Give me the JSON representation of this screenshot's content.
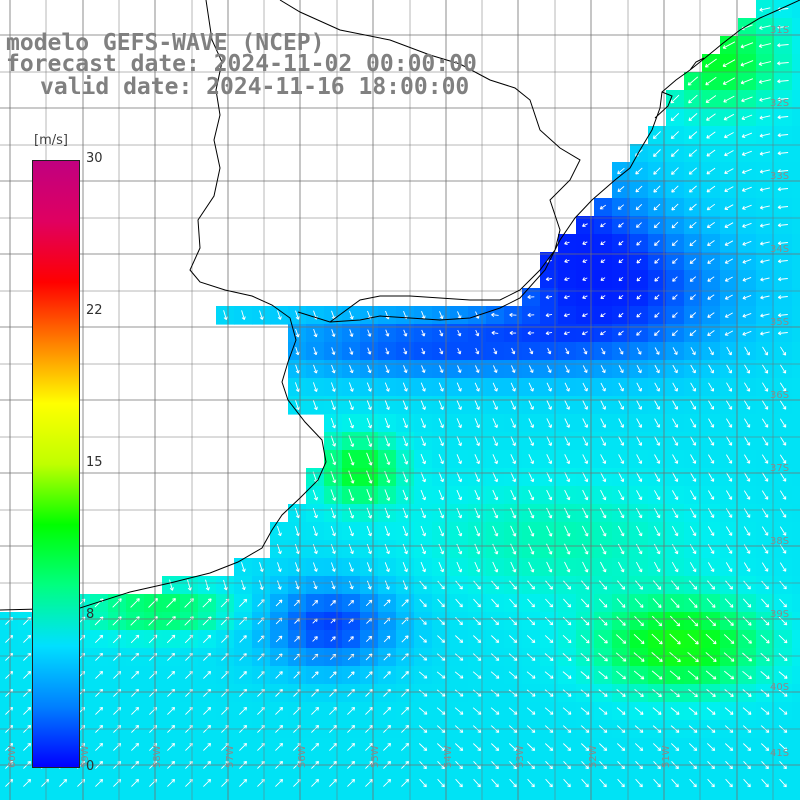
{
  "header": {
    "model": "modelo GEFS-WAVE (NCEP)",
    "forecast": "forecast date: 2024-11-02 00:00:00",
    "valid": "valid date: 2024-11-16 18:00:00"
  },
  "colorbar": {
    "unit": "[m/s]",
    "ticks": [
      "30",
      "22",
      "15",
      "8",
      "0"
    ],
    "range": [
      0,
      30
    ],
    "colors": [
      "#0000ff",
      "#0080ff",
      "#00e0ff",
      "#00ff80",
      "#00ff00",
      "#c0ff00",
      "#ffff00",
      "#ff8000",
      "#ff0000",
      "#e00060",
      "#c00080"
    ]
  },
  "map": {
    "latitude_labels": [
      "31S",
      "32S",
      "33S",
      "34S",
      "35S",
      "36S",
      "37S",
      "38S",
      "39S",
      "40S",
      "41S"
    ],
    "longitude_labels": [
      "60W",
      "59W",
      "58W",
      "57W",
      "56W",
      "55W",
      "54W",
      "53W",
      "52W",
      "51W"
    ]
  },
  "field": {
    "description_colors": {
      "low": "#0000ff",
      "mid": "#00c8ff",
      "high": "#00ff00"
    }
  }
}
